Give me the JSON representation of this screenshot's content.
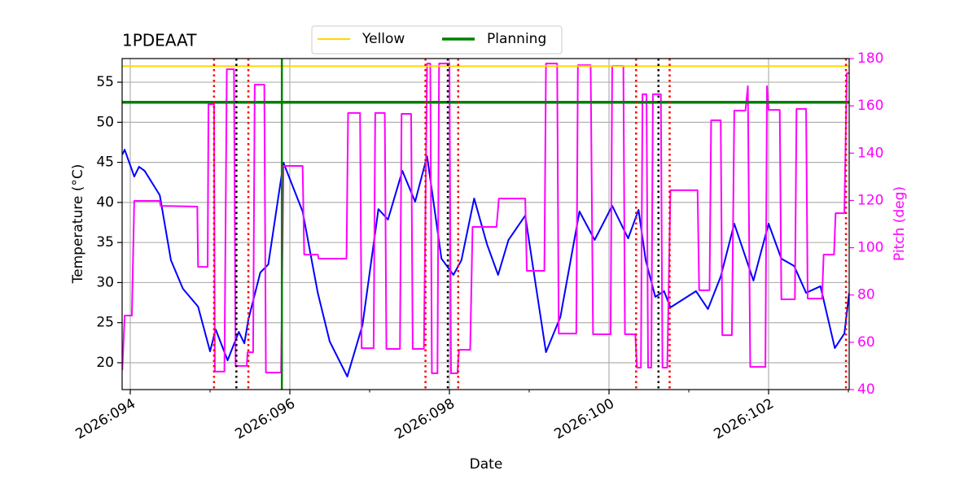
{
  "chart_data": {
    "type": "line",
    "title": "1PDEAAT",
    "xlabel": "Date",
    "ylabel": "Temperature (°C)",
    "y2label": "Pitch (deg)",
    "y2color": "magenta",
    "grid": true,
    "legend": "upper center",
    "xlim": [
      93.898,
      103.01
    ],
    "xticks": [
      {
        "value": 94,
        "label": "2026:094"
      },
      {
        "value": 96,
        "label": "2026:096"
      },
      {
        "value": 98,
        "label": "2026:098"
      },
      {
        "value": 100,
        "label": "2026:100"
      },
      {
        "value": 102,
        "label": "2026:102"
      }
    ],
    "xminor_ticks": [
      95,
      97,
      99,
      101,
      103
    ],
    "ylim": [
      16.65,
      57.95
    ],
    "yticks": [
      20,
      25,
      30,
      35,
      40,
      45,
      50,
      55
    ],
    "y2lim": [
      40,
      180
    ],
    "y2ticks": [
      40,
      60,
      80,
      100,
      120,
      140,
      160,
      180
    ],
    "hlines": [
      {
        "name": "Yellow",
        "color": "gold",
        "y": 57
      },
      {
        "name": "Planning",
        "color": "green",
        "y": 52.5
      }
    ],
    "vlines": [
      {
        "color": "green",
        "style": "solid",
        "x": [
          95.9
        ]
      },
      {
        "color": "red",
        "style": "dotted",
        "x": [
          95.05,
          95.48,
          97.7,
          98.11,
          100.34,
          100.76,
          102.97
        ]
      },
      {
        "color": "black",
        "style": "dotted",
        "x": [
          95.33,
          97.98,
          100.62
        ]
      }
    ],
    "series": [
      {
        "color": "blue",
        "x": [
          93.9,
          93.93,
          94.05,
          94.11,
          94.18,
          94.37,
          94.51,
          94.66,
          94.85,
          95.0,
          95.07,
          95.22,
          95.36,
          95.43,
          95.48,
          95.63,
          95.73,
          95.92,
          96.16,
          96.35,
          96.5,
          96.72,
          96.91,
          97.11,
          97.23,
          97.41,
          97.57,
          97.72,
          97.9,
          98.05,
          98.15,
          98.31,
          98.47,
          98.61,
          98.74,
          98.95,
          99.05,
          99.21,
          99.39,
          99.63,
          99.82,
          100.04,
          100.24,
          100.37,
          100.46,
          100.58,
          100.69,
          100.77,
          101.09,
          101.24,
          101.4,
          101.57,
          101.81,
          102.0,
          102.16,
          102.32,
          102.47,
          102.65,
          102.83,
          102.95,
          103.01
        ],
        "values": [
          45.97,
          46.58,
          43.23,
          44.45,
          43.94,
          40.9,
          32.78,
          29.23,
          27.0,
          21.42,
          24.16,
          20.3,
          23.85,
          22.43,
          25.38,
          31.26,
          32.27,
          44.96,
          38.87,
          28.72,
          22.64,
          18.28,
          24.67,
          39.17,
          37.86,
          43.94,
          40.09,
          45.77,
          32.99,
          30.96,
          32.78,
          40.49,
          34.81,
          30.96,
          35.32,
          38.36,
          31.77,
          21.32,
          25.68,
          38.87,
          35.32,
          39.58,
          35.52,
          39.07,
          32.78,
          28.22,
          28.93,
          26.9,
          28.93,
          26.7,
          30.75,
          37.35,
          30.25,
          37.35,
          32.99,
          32.07,
          28.72,
          29.54,
          21.83,
          23.65,
          28.72
        ]
      },
      {
        "color": "magenta",
        "axis": "y2",
        "x": [
          93.9,
          93.93,
          94.02,
          94.05,
          94.37,
          94.38,
          94.84,
          94.85,
          94.97,
          94.98,
          95.05,
          95.06,
          95.18,
          95.21,
          95.3,
          95.32,
          95.46,
          95.47,
          95.54,
          95.56,
          95.68,
          95.7,
          95.89,
          95.92,
          96.16,
          96.18,
          96.35,
          96.36,
          96.71,
          96.73,
          96.88,
          96.9,
          97.05,
          97.07,
          97.19,
          97.21,
          97.38,
          97.4,
          97.52,
          97.54,
          97.68,
          97.72,
          97.76,
          97.78,
          97.85,
          97.87,
          98.0,
          98.02,
          98.1,
          98.12,
          98.26,
          98.29,
          98.59,
          98.62,
          98.95,
          98.97,
          99.19,
          99.21,
          99.35,
          99.37,
          99.59,
          99.61,
          99.77,
          99.8,
          100.02,
          100.04,
          100.18,
          100.2,
          100.33,
          100.35,
          100.4,
          100.42,
          100.47,
          100.49,
          100.53,
          100.55,
          100.65,
          100.67,
          100.73,
          100.77,
          101.11,
          101.13,
          101.26,
          101.28,
          101.4,
          101.42,
          101.54,
          101.57,
          101.71,
          101.74,
          101.77,
          101.96,
          101.98,
          102.0,
          102.14,
          102.16,
          102.33,
          102.35,
          102.47,
          102.49,
          102.67,
          102.69,
          102.82,
          102.84,
          102.95,
          102.98,
          103.01
        ],
        "values": [
          48.2,
          71.3,
          71.3,
          119.8,
          119.8,
          117.7,
          117.4,
          91.9,
          91.9,
          160.7,
          160.7,
          47.6,
          47.6,
          175.5,
          175.5,
          50.0,
          50.0,
          55.8,
          55.8,
          169.0,
          169.0,
          47.2,
          47.2,
          134.6,
          134.6,
          97.1,
          97.1,
          95.4,
          95.4,
          157.0,
          157.0,
          57.5,
          57.5,
          157.0,
          157.0,
          57.2,
          57.2,
          156.6,
          156.6,
          57.2,
          57.2,
          177.9,
          177.9,
          46.9,
          46.9,
          177.9,
          177.9,
          46.9,
          46.9,
          56.8,
          56.8,
          108.8,
          108.8,
          120.8,
          120.8,
          90.2,
          90.2,
          177.9,
          177.9,
          63.7,
          63.7,
          177.2,
          177.2,
          63.4,
          63.4,
          176.9,
          176.9,
          63.4,
          63.4,
          49.3,
          49.3,
          164.9,
          164.9,
          49.3,
          49.3,
          164.9,
          164.9,
          49.3,
          49.3,
          124.3,
          124.3,
          82.0,
          82.0,
          153.9,
          153.9,
          63.0,
          63.0,
          158.0,
          158.0,
          168.3,
          49.6,
          49.6,
          168.3,
          158.3,
          158.3,
          78.2,
          78.2,
          158.7,
          158.7,
          78.5,
          78.5,
          97.1,
          97.1,
          114.6,
          114.6,
          173.8,
          173.8
        ]
      }
    ]
  }
}
